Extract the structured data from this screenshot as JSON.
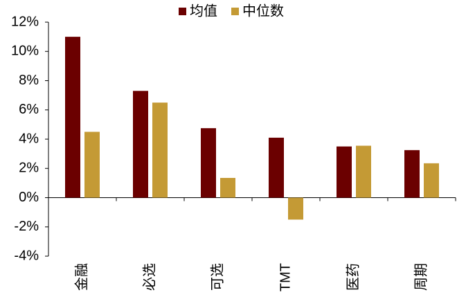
{
  "chart_data": {
    "type": "bar",
    "categories": [
      "金融",
      "必选",
      "可选",
      "TMT",
      "医药",
      "周期"
    ],
    "series": [
      {
        "name": "均值",
        "color": "#6b0000",
        "values": [
          11.0,
          7.3,
          4.75,
          4.1,
          3.5,
          3.25
        ]
      },
      {
        "name": "中位数",
        "color": "#c49a35",
        "values": [
          4.5,
          6.5,
          1.35,
          -1.5,
          3.55,
          2.35
        ]
      }
    ],
    "ylim": [
      -4,
      12
    ],
    "yticks": [
      {
        "value": -4,
        "label": "-4%"
      },
      {
        "value": -2,
        "label": "-2%"
      },
      {
        "value": 0,
        "label": "0%"
      },
      {
        "value": 2,
        "label": "2%"
      },
      {
        "value": 4,
        "label": "4%"
      },
      {
        "value": 6,
        "label": "6%"
      },
      {
        "value": 8,
        "label": "8%"
      },
      {
        "value": 10,
        "label": "10%"
      },
      {
        "value": 12,
        "label": "12%"
      }
    ],
    "legend": "top"
  }
}
